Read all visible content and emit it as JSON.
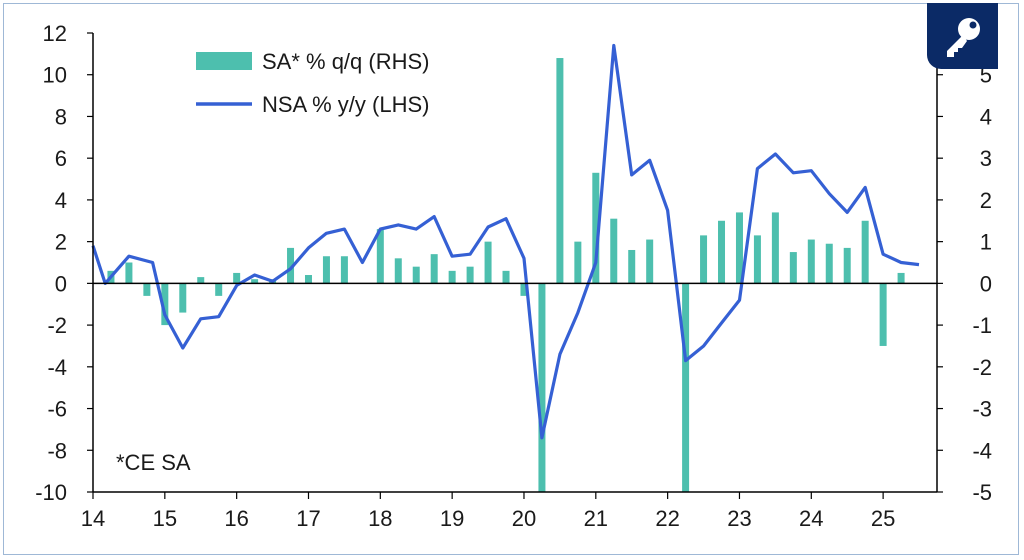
{
  "chart_data": {
    "type": "bar+line",
    "note": "*CE SA",
    "legend": [
      {
        "label": "SA* % q/q (RHS)",
        "kind": "bar",
        "color": "#4dbfae"
      },
      {
        "label": "NSA % y/y (LHS)",
        "kind": "line",
        "color": "#3560d4"
      }
    ],
    "x_ticks": [
      "14",
      "15",
      "16",
      "17",
      "18",
      "19",
      "20",
      "21",
      "22",
      "23",
      "24",
      "25"
    ],
    "y_left": {
      "min": -10,
      "max": 12,
      "ticks": [
        -10,
        -8,
        -6,
        -4,
        -2,
        0,
        2,
        4,
        6,
        8,
        10,
        12
      ]
    },
    "y_right": {
      "min": -5,
      "max": 6,
      "ticks": [
        -5,
        -4,
        -3,
        -2,
        -1,
        0,
        1,
        2,
        3,
        4,
        5
      ]
    },
    "x_range": [
      2014.0,
      2025.75
    ],
    "series": [
      {
        "name": "SA* % q/q (RHS)",
        "axis": "right",
        "type": "bar",
        "color": "#4dbfae",
        "x": [
          2014.25,
          2014.5,
          2014.75,
          2015.0,
          2015.25,
          2015.5,
          2015.75,
          2016.0,
          2016.25,
          2016.5,
          2016.75,
          2017.0,
          2017.25,
          2017.5,
          2017.75,
          2018.0,
          2018.25,
          2018.5,
          2018.75,
          2019.0,
          2019.25,
          2019.5,
          2019.75,
          2020.0,
          2020.25,
          2020.5,
          2020.75,
          2021.0,
          2021.25,
          2021.5,
          2021.75,
          2022.0,
          2022.25,
          2022.5,
          2022.75,
          2023.0,
          2023.25,
          2023.5,
          2023.75,
          2024.0,
          2024.25,
          2024.5,
          2024.75,
          2025.0,
          2025.25,
          2025.5
        ],
        "values": [
          0.3,
          0.5,
          -0.3,
          -1.0,
          -0.7,
          0.15,
          -0.3,
          0.25,
          0.1,
          0.1,
          0.85,
          0.2,
          0.65,
          0.65,
          0.0,
          1.3,
          0.6,
          0.4,
          0.7,
          0.3,
          0.4,
          1.0,
          0.3,
          -0.3,
          -5.0,
          5.4,
          1.0,
          2.65,
          1.55,
          0.8,
          1.05,
          0.0,
          -5.0,
          1.15,
          1.5,
          1.7,
          1.15,
          1.7,
          0.75,
          1.05,
          0.95,
          0.85,
          1.5,
          -1.5,
          0.25,
          0.0
        ]
      },
      {
        "name": "NSA % y/y (LHS)",
        "axis": "left",
        "type": "line",
        "color": "#3560d4",
        "x": [
          2014.0,
          2014.17,
          2014.5,
          2014.83,
          2015.0,
          2015.25,
          2015.5,
          2015.75,
          2016.0,
          2016.25,
          2016.5,
          2016.75,
          2017.0,
          2017.25,
          2017.5,
          2017.75,
          2018.0,
          2018.25,
          2018.5,
          2018.75,
          2019.0,
          2019.25,
          2019.5,
          2019.75,
          2020.0,
          2020.25,
          2020.5,
          2020.75,
          2021.0,
          2021.25,
          2021.5,
          2021.75,
          2022.0,
          2022.25,
          2022.5,
          2022.75,
          2023.0,
          2023.25,
          2023.5,
          2023.75,
          2024.0,
          2024.25,
          2024.5,
          2024.75,
          2025.0,
          2025.25,
          2025.5
        ],
        "values": [
          1.8,
          0.0,
          1.3,
          1.0,
          -1.5,
          -3.1,
          -1.7,
          -1.6,
          -0.1,
          0.4,
          0.1,
          0.7,
          1.7,
          2.4,
          2.6,
          1.0,
          2.6,
          2.8,
          2.6,
          3.2,
          1.3,
          1.4,
          2.7,
          3.1,
          1.2,
          -7.4,
          -3.4,
          -1.4,
          1.0,
          11.4,
          5.2,
          5.9,
          3.5,
          -3.7,
          -3.0,
          -1.9,
          -0.8,
          5.5,
          6.2,
          5.3,
          5.4,
          4.3,
          3.4,
          4.6,
          1.4,
          1.0,
          0.9
        ]
      }
    ]
  }
}
